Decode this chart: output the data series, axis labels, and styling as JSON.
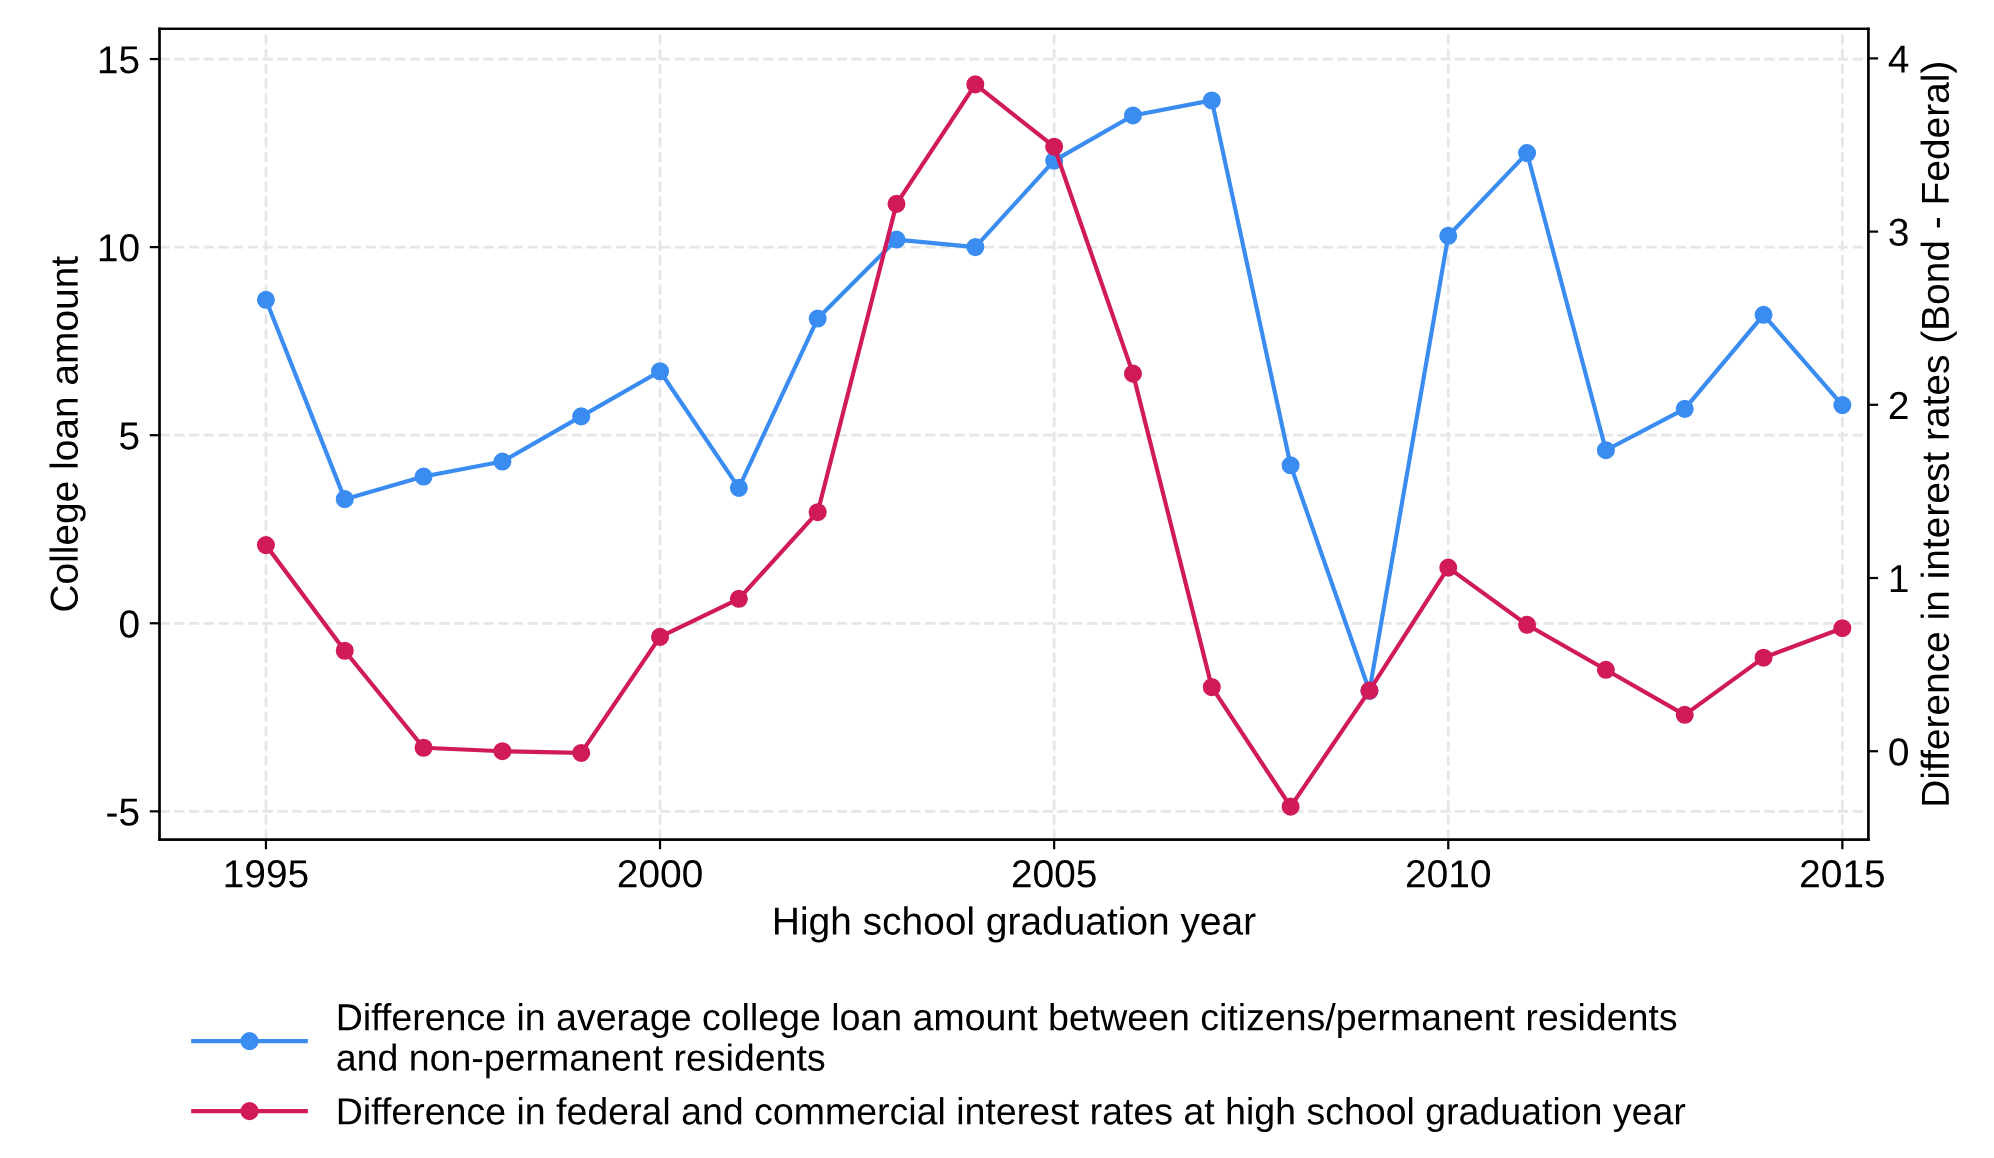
{
  "chart_data": {
    "type": "line",
    "xlabel": "High school graduation year",
    "ylabel": "College loan amount",
    "y2label": "Difference in interest rates (Bond - Federal)",
    "x": [
      1995,
      1996,
      1997,
      1998,
      1999,
      2000,
      2001,
      2002,
      2003,
      2004,
      2005,
      2006,
      2007,
      2008,
      2009,
      2010,
      2011,
      2012,
      2013,
      2014,
      2015
    ],
    "series": [
      {
        "name": "Difference in average college loan amount between citizens/permanent residents\nand non-permanent residents",
        "color": "#3a8cf0",
        "values": [
          8.6,
          3.3,
          3.9,
          4.3,
          5.5,
          6.7,
          3.6,
          8.1,
          10.2,
          10.0,
          12.3,
          13.5,
          13.9,
          4.2,
          -1.8,
          10.3,
          12.5,
          4.6,
          5.7,
          8.2,
          5.8
        ]
      },
      {
        "name": "Difference in federal and commercial interest rates at high school graduation year",
        "color": "#d01a5a",
        "axis": "y2",
        "values": [
          1.19,
          0.58,
          0.02,
          0.0,
          -0.01,
          0.66,
          0.88,
          1.38,
          3.16,
          3.85,
          3.49,
          2.18,
          0.37,
          -0.32,
          0.35,
          1.06,
          0.73,
          0.47,
          0.21,
          0.54,
          0.71
        ]
      }
    ],
    "xlim": [
      1993.65,
      2015.33
    ],
    "xticks": [
      1995,
      2000,
      2005,
      2010,
      2015
    ],
    "ylim": [
      -5.75,
      15.8
    ],
    "yticks": [
      -5,
      0,
      5,
      10,
      15
    ],
    "y2lim": [
      -0.51,
      4.17
    ],
    "y2ticks": [
      0,
      1,
      2,
      3,
      4
    ],
    "grid": true,
    "legend": "bottom",
    "marker": "circle",
    "line_style": "solid"
  }
}
